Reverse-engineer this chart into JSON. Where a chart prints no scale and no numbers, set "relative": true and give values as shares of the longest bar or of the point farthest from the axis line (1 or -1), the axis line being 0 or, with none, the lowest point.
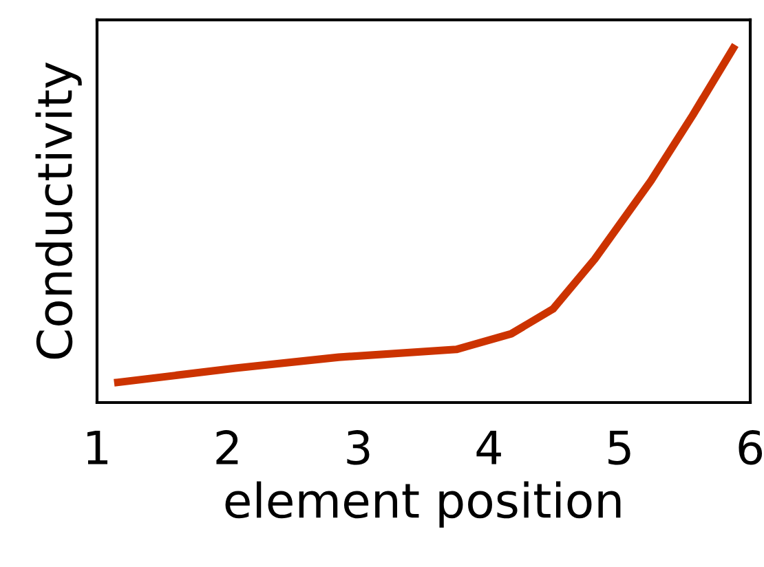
{
  "chart_data": {
    "type": "line",
    "relative": true,
    "xlabel": "element position",
    "ylabel": "Conductivity",
    "xlim": [
      1,
      6
    ],
    "xticks": [
      1,
      2,
      3,
      4,
      5,
      6
    ],
    "grid": false,
    "legend": false,
    "marker": "none",
    "line_style": "solid",
    "series": [
      {
        "color": "#cc3300",
        "x": [
          1.16,
          2.06,
          2.85,
          3.75,
          4.17,
          4.49,
          4.81,
          5.24,
          5.56,
          5.87
        ],
        "values": [
          0.057,
          0.097,
          0.128,
          0.15,
          0.194,
          0.264,
          0.405,
          0.626,
          0.811,
          1.0
        ]
      }
    ]
  }
}
